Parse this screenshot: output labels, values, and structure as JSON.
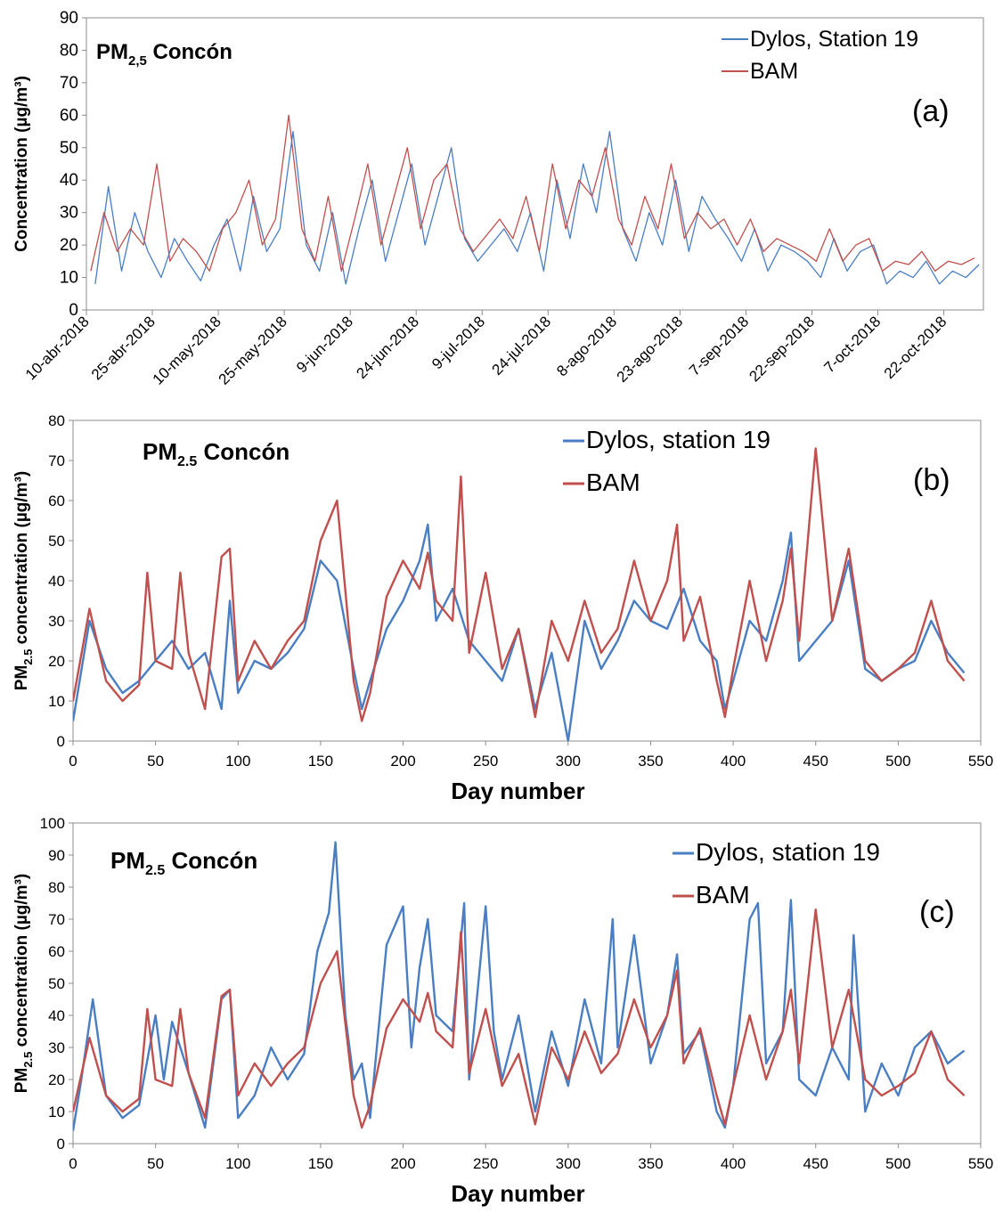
{
  "chart_data": [
    {
      "panel": "a",
      "type": "line",
      "title": "PM",
      "title_sub": "2,5",
      "title_rest": "Concón",
      "panel_label": "(a)",
      "ylabel": "Concentration (µg/m³)",
      "xlabel": "",
      "ylim": [
        0,
        90
      ],
      "yticks": [
        0,
        10,
        20,
        30,
        40,
        50,
        60,
        70,
        80,
        90
      ],
      "xlim": [
        "2018-04-10",
        "2018-10-31"
      ],
      "xtick_dates": [
        "2018-04-10",
        "2018-04-25",
        "2018-05-10",
        "2018-05-25",
        "2018-06-09",
        "2018-06-24",
        "2018-07-09",
        "2018-07-24",
        "2018-08-08",
        "2018-08-23",
        "2018-09-07",
        "2018-09-22",
        "2018-10-07",
        "2018-10-22"
      ],
      "xticks": [
        "10-abr-2018",
        "25-abr-2018",
        "10-may-2018",
        "25-may-2018",
        "9-jun-2018",
        "24-jun-2018",
        "9-jul-2018",
        "24-jul-2018",
        "8-ago-2018",
        "23-ago-2018",
        "7-sep-2018",
        "22-sep-2018",
        "7-oct-2018",
        "22-oct-2018"
      ],
      "grid": false,
      "legend_position": "top-right",
      "series": [
        {
          "name": "Dylos, Station 19",
          "color": "#4A7EC3",
          "x": [
            "2018-04-12",
            "2018-04-15",
            "2018-04-18",
            "2018-04-21",
            "2018-04-24",
            "2018-04-27",
            "2018-04-30",
            "2018-05-03",
            "2018-05-06",
            "2018-05-09",
            "2018-05-12",
            "2018-05-15",
            "2018-05-18",
            "2018-05-21",
            "2018-05-24",
            "2018-05-27",
            "2018-05-30",
            "2018-06-02",
            "2018-06-05",
            "2018-06-08",
            "2018-06-11",
            "2018-06-14",
            "2018-06-17",
            "2018-06-20",
            "2018-06-23",
            "2018-06-26",
            "2018-06-29",
            "2018-07-02",
            "2018-07-05",
            "2018-07-08",
            "2018-07-14",
            "2018-07-17",
            "2018-07-20",
            "2018-07-23",
            "2018-07-26",
            "2018-07-29",
            "2018-08-01",
            "2018-08-04",
            "2018-08-07",
            "2018-08-10",
            "2018-08-13",
            "2018-08-16",
            "2018-08-19",
            "2018-08-22",
            "2018-08-25",
            "2018-08-28",
            "2018-08-31",
            "2018-09-03",
            "2018-09-06",
            "2018-09-09",
            "2018-09-12",
            "2018-09-15",
            "2018-09-18",
            "2018-09-21",
            "2018-09-24",
            "2018-09-27",
            "2018-09-30",
            "2018-10-03",
            "2018-10-06",
            "2018-10-09",
            "2018-10-12",
            "2018-10-15",
            "2018-10-18",
            "2018-10-21",
            "2018-10-24",
            "2018-10-27",
            "2018-10-30"
          ],
          "values": [
            8,
            38,
            12,
            30,
            18,
            10,
            22,
            15,
            9,
            20,
            28,
            12,
            35,
            18,
            25,
            55,
            20,
            12,
            30,
            8,
            25,
            40,
            15,
            30,
            45,
            20,
            35,
            50,
            22,
            15,
            25,
            18,
            30,
            12,
            40,
            22,
            45,
            30,
            55,
            25,
            15,
            30,
            20,
            40,
            18,
            35,
            28,
            22,
            15,
            25,
            12,
            20,
            18,
            15,
            10,
            22,
            12,
            18,
            20,
            8,
            12,
            10,
            15,
            8,
            12,
            10,
            14
          ]
        },
        {
          "name": "BAM",
          "color": "#C0504D",
          "x": [
            "2018-04-11",
            "2018-04-14",
            "2018-04-17",
            "2018-04-20",
            "2018-04-23",
            "2018-04-26",
            "2018-04-29",
            "2018-05-02",
            "2018-05-05",
            "2018-05-08",
            "2018-05-11",
            "2018-05-14",
            "2018-05-17",
            "2018-05-20",
            "2018-05-23",
            "2018-05-26",
            "2018-05-29",
            "2018-06-01",
            "2018-06-04",
            "2018-06-07",
            "2018-06-10",
            "2018-06-13",
            "2018-06-16",
            "2018-06-19",
            "2018-06-22",
            "2018-06-25",
            "2018-06-28",
            "2018-07-01",
            "2018-07-04",
            "2018-07-07",
            "2018-07-13",
            "2018-07-16",
            "2018-07-19",
            "2018-07-22",
            "2018-07-25",
            "2018-07-28",
            "2018-07-31",
            "2018-08-03",
            "2018-08-06",
            "2018-08-09",
            "2018-08-12",
            "2018-08-15",
            "2018-08-18",
            "2018-08-21",
            "2018-08-24",
            "2018-08-27",
            "2018-08-30",
            "2018-09-02",
            "2018-09-05",
            "2018-09-08",
            "2018-09-11",
            "2018-09-14",
            "2018-09-17",
            "2018-09-20",
            "2018-09-23",
            "2018-09-26",
            "2018-09-29",
            "2018-10-02",
            "2018-10-05",
            "2018-10-08",
            "2018-10-11",
            "2018-10-14",
            "2018-10-17",
            "2018-10-20",
            "2018-10-23",
            "2018-10-26",
            "2018-10-29"
          ],
          "values": [
            12,
            30,
            18,
            25,
            20,
            45,
            15,
            22,
            18,
            12,
            25,
            30,
            40,
            20,
            28,
            60,
            25,
            15,
            35,
            12,
            28,
            45,
            20,
            35,
            50,
            25,
            40,
            45,
            25,
            18,
            28,
            22,
            35,
            18,
            45,
            25,
            40,
            35,
            50,
            28,
            20,
            35,
            25,
            45,
            22,
            30,
            25,
            28,
            20,
            28,
            18,
            22,
            20,
            18,
            15,
            25,
            15,
            20,
            22,
            12,
            15,
            14,
            18,
            12,
            15,
            14,
            16
          ]
        }
      ]
    },
    {
      "panel": "b",
      "type": "line",
      "title": "PM",
      "title_sub": "2.5",
      "title_rest": "Concón",
      "panel_label": "(b)",
      "ylabel_main": "PM",
      "ylabel_sub": "2.5",
      "ylabel_rest": "concentration (µg/m³)",
      "xlabel": "Day number",
      "xlim": [
        0,
        550
      ],
      "ylim": [
        0,
        80
      ],
      "xticks": [
        0,
        50,
        100,
        150,
        200,
        250,
        300,
        350,
        400,
        450,
        500,
        550
      ],
      "yticks": [
        0,
        10,
        20,
        30,
        40,
        50,
        60,
        70,
        80
      ],
      "grid": false,
      "legend_position": "top-right",
      "series": [
        {
          "name": "Dylos, station 19",
          "color": "#4A7EC3",
          "x": [
            0,
            10,
            20,
            30,
            40,
            50,
            60,
            70,
            80,
            90,
            95,
            100,
            110,
            120,
            130,
            140,
            150,
            160,
            170,
            175,
            180,
            190,
            200,
            210,
            215,
            220,
            230,
            240,
            250,
            260,
            270,
            280,
            290,
            300,
            310,
            320,
            330,
            340,
            350,
            360,
            370,
            380,
            390,
            395,
            400,
            410,
            420,
            430,
            435,
            440,
            450,
            460,
            470,
            480,
            490,
            500,
            510,
            520,
            530,
            540
          ],
          "values": [
            5,
            30,
            18,
            12,
            15,
            20,
            25,
            18,
            22,
            8,
            35,
            12,
            20,
            18,
            22,
            28,
            45,
            40,
            18,
            8,
            15,
            28,
            35,
            45,
            54,
            30,
            38,
            25,
            20,
            15,
            28,
            8,
            22,
            0,
            30,
            18,
            25,
            35,
            30,
            28,
            38,
            25,
            20,
            8,
            15,
            30,
            25,
            40,
            52,
            20,
            25,
            30,
            45,
            18,
            15,
            18,
            20,
            30,
            22,
            17
          ]
        },
        {
          "name": "BAM",
          "color": "#C0504D",
          "x": [
            0,
            10,
            20,
            30,
            40,
            45,
            50,
            60,
            65,
            70,
            80,
            90,
            95,
            100,
            110,
            120,
            130,
            140,
            150,
            160,
            170,
            175,
            180,
            190,
            200,
            210,
            215,
            220,
            230,
            235,
            240,
            250,
            260,
            270,
            280,
            290,
            300,
            310,
            320,
            330,
            340,
            350,
            360,
            366,
            370,
            380,
            390,
            395,
            400,
            410,
            420,
            430,
            435,
            440,
            450,
            460,
            470,
            480,
            490,
            500,
            510,
            520,
            530,
            540
          ],
          "values": [
            10,
            33,
            15,
            10,
            14,
            42,
            20,
            18,
            42,
            22,
            8,
            46,
            48,
            15,
            25,
            18,
            25,
            30,
            50,
            60,
            15,
            5,
            12,
            36,
            45,
            38,
            47,
            35,
            30,
            66,
            22,
            42,
            18,
            28,
            6,
            30,
            20,
            35,
            22,
            28,
            45,
            30,
            40,
            54,
            25,
            36,
            15,
            6,
            18,
            40,
            20,
            35,
            48,
            25,
            73,
            30,
            48,
            20,
            15,
            18,
            22,
            35,
            20,
            15
          ]
        }
      ]
    },
    {
      "panel": "c",
      "type": "line",
      "title": "PM",
      "title_sub": "2.5",
      "title_rest": "Concón",
      "panel_label": "(c)",
      "ylabel_main": "PM",
      "ylabel_sub": "2.5",
      "ylabel_rest": "concentration (µg/m³)",
      "xlabel": "Day number",
      "xlim": [
        0,
        550
      ],
      "ylim": [
        0,
        100
      ],
      "xticks": [
        0,
        50,
        100,
        150,
        200,
        250,
        300,
        350,
        400,
        450,
        500,
        550
      ],
      "yticks": [
        0,
        10,
        20,
        30,
        40,
        50,
        60,
        70,
        80,
        90,
        100
      ],
      "grid": false,
      "legend_position": "top-right",
      "series": [
        {
          "name": "Dylos, station 19",
          "color": "#4A7EC3",
          "x": [
            0,
            5,
            12,
            20,
            30,
            40,
            50,
            55,
            60,
            70,
            80,
            85,
            90,
            95,
            100,
            110,
            120,
            130,
            140,
            148,
            155,
            159,
            165,
            170,
            175,
            180,
            190,
            200,
            205,
            210,
            215,
            220,
            230,
            237,
            240,
            250,
            255,
            260,
            270,
            280,
            290,
            300,
            310,
            320,
            327,
            330,
            340,
            350,
            360,
            366,
            370,
            380,
            390,
            395,
            400,
            410,
            415,
            420,
            430,
            435,
            440,
            450,
            460,
            470,
            473,
            480,
            490,
            500,
            510,
            520,
            530,
            540
          ],
          "values": [
            4,
            20,
            45,
            15,
            8,
            12,
            40,
            20,
            38,
            22,
            5,
            25,
            45,
            48,
            8,
            15,
            30,
            20,
            28,
            60,
            72,
            94,
            40,
            20,
            25,
            8,
            62,
            74,
            30,
            55,
            70,
            40,
            35,
            75,
            20,
            74,
            35,
            20,
            40,
            10,
            35,
            18,
            45,
            25,
            70,
            30,
            65,
            25,
            40,
            59,
            28,
            35,
            10,
            5,
            18,
            70,
            75,
            25,
            35,
            76,
            20,
            15,
            30,
            20,
            65,
            10,
            25,
            15,
            30,
            35,
            25,
            29
          ]
        },
        {
          "name": "BAM",
          "color": "#C0504D",
          "x": [
            0,
            10,
            20,
            30,
            40,
            45,
            50,
            60,
            65,
            70,
            80,
            90,
            95,
            100,
            110,
            120,
            130,
            140,
            150,
            160,
            170,
            175,
            180,
            190,
            200,
            210,
            215,
            220,
            230,
            235,
            240,
            250,
            260,
            270,
            280,
            290,
            300,
            310,
            320,
            330,
            340,
            350,
            360,
            366,
            370,
            380,
            390,
            395,
            400,
            410,
            420,
            430,
            435,
            440,
            450,
            460,
            470,
            480,
            490,
            500,
            510,
            520,
            530,
            540
          ],
          "values": [
            10,
            33,
            15,
            10,
            14,
            42,
            20,
            18,
            42,
            22,
            8,
            46,
            48,
            15,
            25,
            18,
            25,
            30,
            50,
            60,
            15,
            5,
            12,
            36,
            45,
            38,
            47,
            35,
            30,
            66,
            22,
            42,
            18,
            28,
            6,
            30,
            20,
            35,
            22,
            28,
            45,
            30,
            40,
            54,
            25,
            36,
            15,
            6,
            18,
            40,
            20,
            35,
            48,
            25,
            73,
            30,
            48,
            20,
            15,
            18,
            22,
            35,
            20,
            15
          ]
        }
      ]
    }
  ]
}
